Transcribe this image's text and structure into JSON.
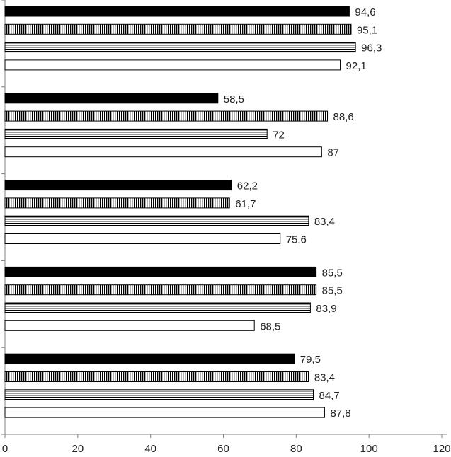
{
  "chart_data": {
    "type": "bar",
    "orientation": "horizontal",
    "title": "",
    "xlabel": "",
    "ylabel": "",
    "xlim": [
      0,
      120
    ],
    "x_ticks": [
      0,
      20,
      40,
      60,
      80,
      100,
      120
    ],
    "x_tick_labels": [
      "0",
      "20",
      "40",
      "60",
      "80",
      "100",
      "120"
    ],
    "grid": false,
    "legend": "none",
    "category_count": 5,
    "series": [
      {
        "pattern": "solid-black",
        "values": [
          94.6,
          58.5,
          62.2,
          85.5,
          79.5
        ],
        "labels": [
          "94,6",
          "58,5",
          "62,2",
          "85,5",
          "79,5"
        ]
      },
      {
        "pattern": "vertical-stripes",
        "values": [
          95.1,
          88.6,
          61.7,
          85.5,
          83.4
        ],
        "labels": [
          "95,1",
          "88,6",
          "61,7",
          "85,5",
          "83,4"
        ]
      },
      {
        "pattern": "horizontal-stripes",
        "values": [
          96.3,
          72,
          83.4,
          83.9,
          84.7
        ],
        "labels": [
          "96,3",
          "72",
          "83,4",
          "83,9",
          "84,7"
        ]
      },
      {
        "pattern": "white",
        "values": [
          92.1,
          87,
          75.6,
          68.5,
          87.8
        ],
        "labels": [
          "92,1",
          "87",
          "75,6",
          "68,5",
          "87,8"
        ]
      }
    ],
    "colors": {
      "bar_stroke": "#000000",
      "fill_dark": "#000000",
      "fill_light": "#ffffff",
      "axis": "#808080",
      "text": "#222222"
    }
  }
}
